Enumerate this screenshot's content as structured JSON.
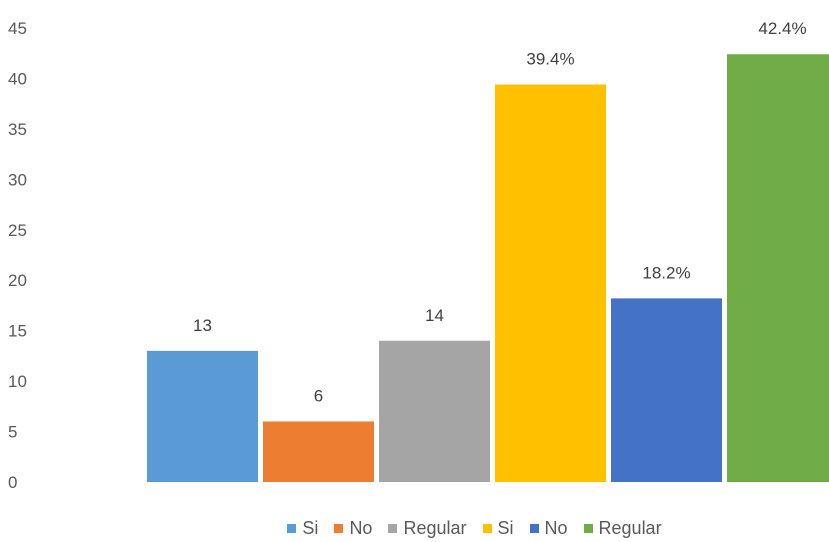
{
  "chart_data": {
    "type": "bar",
    "title": "",
    "xlabel": "",
    "ylabel": "",
    "ylim": [
      0,
      45
    ],
    "y_ticks": [
      0,
      5,
      10,
      15,
      20,
      25,
      30,
      35,
      40,
      45
    ],
    "grid": false,
    "legend_position": "bottom",
    "series": [
      {
        "name": "Si",
        "value": 13,
        "label": "13",
        "color": "#5B9BD5"
      },
      {
        "name": "No",
        "value": 6,
        "label": "6",
        "color": "#ED7D31"
      },
      {
        "name": "Regular",
        "value": 14,
        "label": "14",
        "color": "#A5A5A5"
      },
      {
        "name": "Si",
        "value": 39.4,
        "label": "39.4%",
        "color": "#FFC000"
      },
      {
        "name": "No",
        "value": 18.2,
        "label": "18.2%",
        "color": "#4472C4"
      },
      {
        "name": "Regular",
        "value": 42.4,
        "label": "42.4%",
        "color": "#70AD47"
      }
    ]
  }
}
